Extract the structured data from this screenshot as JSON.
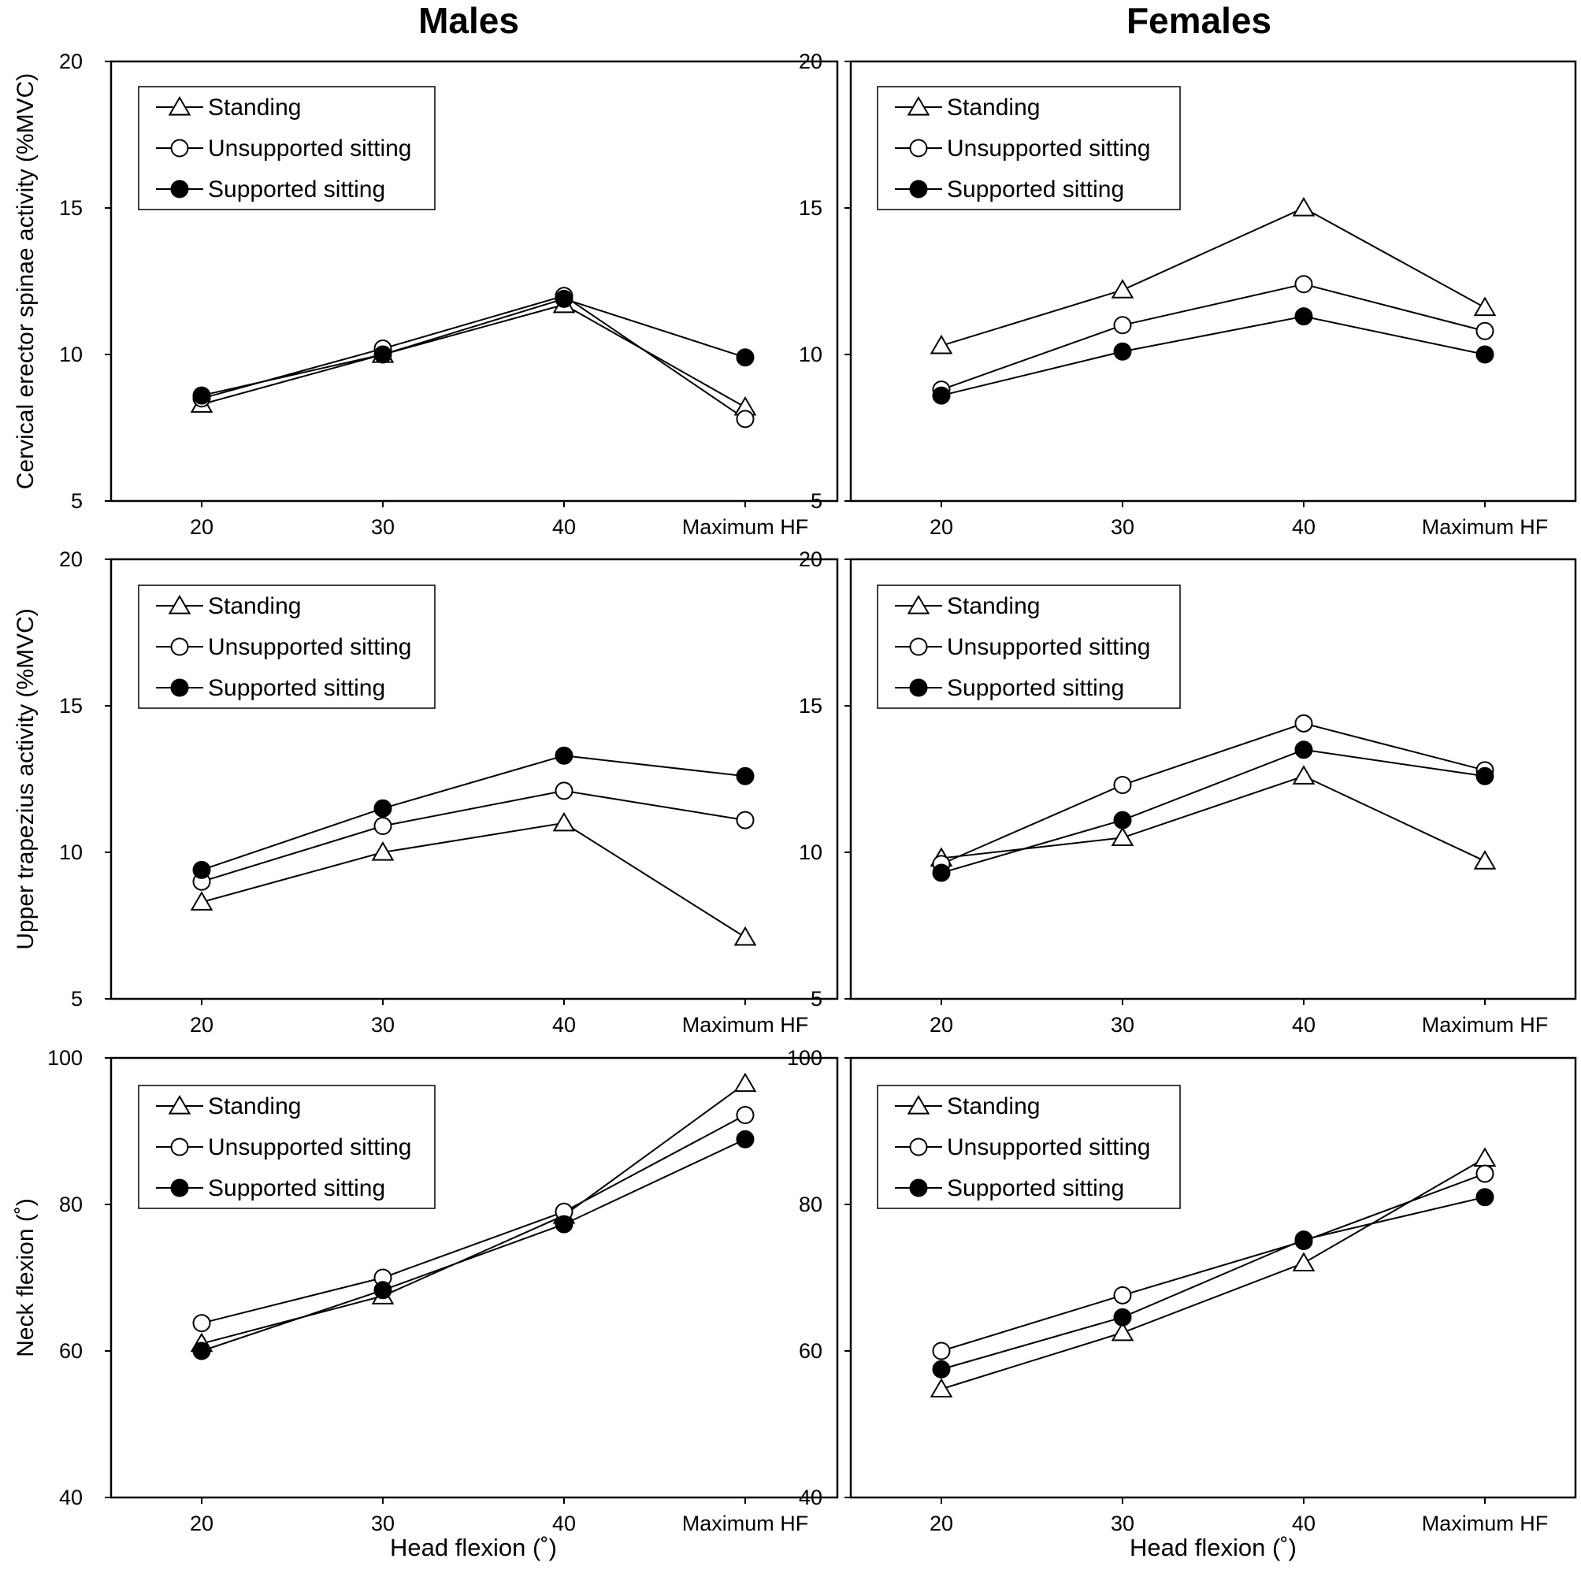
{
  "figure": {
    "col_titles": [
      "Males",
      "Females"
    ],
    "x_axis_label": "Head flexion (˚)"
  },
  "chart_data": [
    {
      "type": "line",
      "panel": "Males - Cervical erector spinae",
      "categories": [
        "20",
        "30",
        "40",
        "Maximum HF"
      ],
      "ylabel": "Cervical erector spinae activity  (%MVC)",
      "xlabel": "",
      "ylim": [
        5,
        20
      ],
      "yticks": [
        5,
        10,
        15,
        20
      ],
      "legend": "top-left",
      "series": [
        {
          "name": "Standing",
          "marker": "triangle",
          "values": [
            8.3,
            10.0,
            11.7,
            8.2
          ]
        },
        {
          "name": "Unsupported sitting",
          "marker": "open-circle",
          "values": [
            8.5,
            10.2,
            12.0,
            7.8
          ]
        },
        {
          "name": "Supported sitting",
          "marker": "filled-circle",
          "values": [
            8.6,
            10.0,
            11.9,
            9.9
          ]
        }
      ]
    },
    {
      "type": "line",
      "panel": "Females - Cervical erector spinae",
      "categories": [
        "20",
        "30",
        "40",
        "Maximum HF"
      ],
      "ylabel": "",
      "xlabel": "",
      "ylim": [
        5,
        20
      ],
      "yticks": [
        5,
        10,
        15,
        20
      ],
      "legend": "top-left",
      "series": [
        {
          "name": "Standing",
          "marker": "triangle",
          "values": [
            10.3,
            12.2,
            15.0,
            11.6
          ]
        },
        {
          "name": "Unsupported sitting",
          "marker": "open-circle",
          "values": [
            8.8,
            11.0,
            12.4,
            10.8
          ]
        },
        {
          "name": "Supported sitting",
          "marker": "filled-circle",
          "values": [
            8.6,
            10.1,
            11.3,
            10.0
          ]
        }
      ]
    },
    {
      "type": "line",
      "panel": "Males - Upper trapezius",
      "categories": [
        "20",
        "30",
        "40",
        "Maximum HF"
      ],
      "ylabel": "Upper trapezius activity (%MVC)",
      "xlabel": "",
      "ylim": [
        5,
        20
      ],
      "yticks": [
        5,
        10,
        15,
        20
      ],
      "legend": "top-left",
      "series": [
        {
          "name": "Standing",
          "marker": "triangle",
          "values": [
            8.3,
            10.0,
            11.0,
            7.1
          ]
        },
        {
          "name": "Unsupported sitting",
          "marker": "open-circle",
          "values": [
            9.0,
            10.9,
            12.1,
            11.1
          ]
        },
        {
          "name": "Supported sitting",
          "marker": "filled-circle",
          "values": [
            9.4,
            11.5,
            13.3,
            12.6
          ]
        }
      ]
    },
    {
      "type": "line",
      "panel": "Females - Upper trapezius",
      "categories": [
        "20",
        "30",
        "40",
        "Maximum HF"
      ],
      "ylabel": "",
      "xlabel": "",
      "ylim": [
        5,
        20
      ],
      "yticks": [
        5,
        10,
        15,
        20
      ],
      "legend": "top-left",
      "series": [
        {
          "name": "Standing",
          "marker": "triangle",
          "values": [
            9.8,
            10.5,
            12.6,
            9.7
          ]
        },
        {
          "name": "Unsupported sitting",
          "marker": "open-circle",
          "values": [
            9.6,
            12.3,
            14.4,
            12.8
          ]
        },
        {
          "name": "Supported sitting",
          "marker": "filled-circle",
          "values": [
            9.3,
            11.1,
            13.5,
            12.6
          ]
        }
      ]
    },
    {
      "type": "line",
      "panel": "Males - Neck flexion",
      "categories": [
        "20",
        "30",
        "40",
        "Maximum HF"
      ],
      "ylabel": "Neck flexion (˚)",
      "xlabel": "Head flexion (˚)",
      "ylim": [
        40,
        100
      ],
      "yticks": [
        40,
        60,
        80,
        100
      ],
      "legend": "top-left",
      "series": [
        {
          "name": "Standing",
          "marker": "triangle",
          "values": [
            61,
            67.5,
            78.5,
            96.5
          ]
        },
        {
          "name": "Unsupported sitting",
          "marker": "open-circle",
          "values": [
            63.8,
            70,
            79,
            92.2
          ]
        },
        {
          "name": "Supported sitting",
          "marker": "filled-circle",
          "values": [
            60,
            68.3,
            77.3,
            88.9
          ]
        }
      ]
    },
    {
      "type": "line",
      "panel": "Females - Neck flexion",
      "categories": [
        "20",
        "30",
        "40",
        "Maximum HF"
      ],
      "ylabel": "",
      "xlabel": "Head flexion (˚)",
      "ylim": [
        40,
        100
      ],
      "yticks": [
        40,
        60,
        80,
        100
      ],
      "legend": "top-left",
      "series": [
        {
          "name": "Standing",
          "marker": "triangle",
          "values": [
            54.8,
            62.5,
            72,
            86.3
          ]
        },
        {
          "name": "Unsupported sitting",
          "marker": "open-circle",
          "values": [
            60,
            67.6,
            75,
            84.2
          ]
        },
        {
          "name": "Supported sitting",
          "marker": "filled-circle",
          "values": [
            57.5,
            64.6,
            75.2,
            81
          ]
        }
      ]
    }
  ]
}
